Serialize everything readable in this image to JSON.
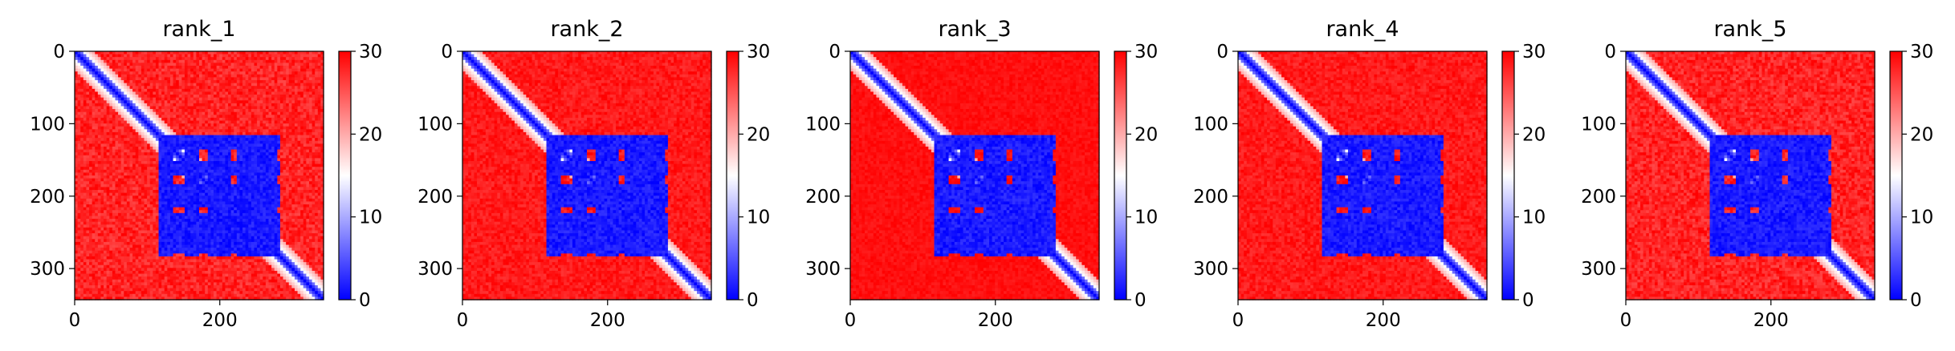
{
  "chart_data": [
    {
      "type": "heatmap",
      "title": "rank_1",
      "xticks": [
        "0",
        "200"
      ],
      "yticks": [
        "0",
        "100",
        "200",
        "300"
      ],
      "colorbar_ticks": [
        "0",
        "10",
        "20",
        "30"
      ],
      "xlim": [
        0,
        343
      ],
      "ylim": [
        343,
        0
      ],
      "color_range": [
        0,
        30
      ],
      "colormap": [
        "#0000ff",
        "#ffffff",
        "#ff0000"
      ],
      "blue_blocks": [
        {
          "x": [
            115,
            285
          ],
          "y": [
            115,
            135
          ]
        },
        {
          "x": [
            115,
            285
          ],
          "y": [
            150,
            170
          ]
        },
        {
          "x": [
            115,
            285
          ],
          "y": [
            185,
            215
          ]
        },
        {
          "x": [
            115,
            285
          ],
          "y": [
            225,
            280
          ]
        },
        {
          "x": [
            342,
            343
          ],
          "y": [
            115,
            285
          ]
        }
      ],
      "noise": 0.35
    },
    {
      "type": "heatmap",
      "title": "rank_2",
      "xticks": [
        "0",
        "200"
      ],
      "yticks": [
        "0",
        "100",
        "200",
        "300"
      ],
      "colorbar_ticks": [
        "0",
        "10",
        "20",
        "30"
      ],
      "xlim": [
        0,
        343
      ],
      "ylim": [
        343,
        0
      ],
      "color_range": [
        0,
        30
      ],
      "colormap": [
        "#0000ff",
        "#ffffff",
        "#ff0000"
      ],
      "blue_blocks": [
        {
          "x": [
            115,
            285
          ],
          "y": [
            115,
            135
          ]
        },
        {
          "x": [
            115,
            285
          ],
          "y": [
            150,
            170
          ]
        },
        {
          "x": [
            115,
            285
          ],
          "y": [
            185,
            215
          ]
        },
        {
          "x": [
            115,
            285
          ],
          "y": [
            225,
            280
          ]
        },
        {
          "x": [
            342,
            343
          ],
          "y": [
            115,
            285
          ]
        }
      ],
      "noise": 0.25
    },
    {
      "type": "heatmap",
      "title": "rank_3",
      "xticks": [
        "0",
        "200"
      ],
      "yticks": [
        "0",
        "100",
        "200",
        "300"
      ],
      "colorbar_ticks": [
        "0",
        "10",
        "20",
        "30"
      ],
      "xlim": [
        0,
        343
      ],
      "ylim": [
        343,
        0
      ],
      "color_range": [
        0,
        30
      ],
      "colormap": [
        "#0000ff",
        "#ffffff",
        "#ff0000"
      ],
      "blue_blocks": [
        {
          "x": [
            115,
            285
          ],
          "y": [
            115,
            135
          ]
        },
        {
          "x": [
            115,
            285
          ],
          "y": [
            150,
            170
          ]
        },
        {
          "x": [
            115,
            285
          ],
          "y": [
            185,
            215
          ]
        },
        {
          "x": [
            115,
            285
          ],
          "y": [
            225,
            280
          ]
        },
        {
          "x": [
            342,
            343
          ],
          "y": [
            115,
            285
          ]
        }
      ],
      "noise": 0.15
    },
    {
      "type": "heatmap",
      "title": "rank_4",
      "xticks": [
        "0",
        "200"
      ],
      "yticks": [
        "0",
        "100",
        "200",
        "300"
      ],
      "colorbar_ticks": [
        "0",
        "10",
        "20",
        "30"
      ],
      "xlim": [
        0,
        343
      ],
      "ylim": [
        343,
        0
      ],
      "color_range": [
        0,
        30
      ],
      "colormap": [
        "#0000ff",
        "#ffffff",
        "#ff0000"
      ],
      "blue_blocks": [
        {
          "x": [
            115,
            285
          ],
          "y": [
            115,
            135
          ]
        },
        {
          "x": [
            115,
            285
          ],
          "y": [
            150,
            170
          ]
        },
        {
          "x": [
            115,
            285
          ],
          "y": [
            185,
            215
          ]
        },
        {
          "x": [
            115,
            285
          ],
          "y": [
            225,
            280
          ]
        },
        {
          "x": [
            342,
            343
          ],
          "y": [
            115,
            285
          ]
        }
      ],
      "noise": 0.25
    },
    {
      "type": "heatmap",
      "title": "rank_5",
      "xticks": [
        "0",
        "200"
      ],
      "yticks": [
        "0",
        "100",
        "200",
        "300"
      ],
      "colorbar_ticks": [
        "0",
        "10",
        "20",
        "30"
      ],
      "xlim": [
        0,
        343
      ],
      "ylim": [
        343,
        0
      ],
      "color_range": [
        0,
        30
      ],
      "colormap": [
        "#0000ff",
        "#ffffff",
        "#ff0000"
      ],
      "blue_blocks": [
        {
          "x": [
            115,
            285
          ],
          "y": [
            115,
            135
          ]
        },
        {
          "x": [
            115,
            285
          ],
          "y": [
            150,
            170
          ]
        },
        {
          "x": [
            115,
            285
          ],
          "y": [
            185,
            215
          ]
        },
        {
          "x": [
            115,
            285
          ],
          "y": [
            225,
            280
          ]
        },
        {
          "x": [
            342,
            343
          ],
          "y": [
            115,
            285
          ]
        }
      ],
      "noise": 0.35
    }
  ]
}
